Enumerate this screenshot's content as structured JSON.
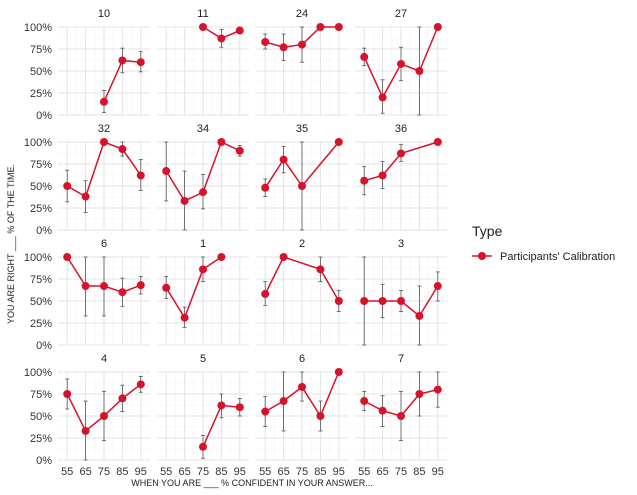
{
  "chart_data": {
    "type": "line",
    "xlabel": "WHEN YOU ARE ___ % CONFIDENT IN YOUR ANSWER...",
    "ylabel": "YOU ARE RIGHT ___ % OF THE TIME.",
    "x_ticks": [
      "55",
      "65",
      "75",
      "85",
      "95"
    ],
    "y_ticks": [
      "0%",
      "25%",
      "50%",
      "75%",
      "100%"
    ],
    "xlim": [
      50,
      100
    ],
    "ylim": [
      0,
      1
    ],
    "grid": true,
    "legend": {
      "title": "Type",
      "placement": "right",
      "entries": [
        {
          "label": "Participants' Calibration",
          "color": "#d7132b"
        }
      ]
    },
    "series_color": "#d7132b",
    "errorbar_color": "#555555",
    "panels": [
      {
        "title": "10",
        "points": [
          {
            "x": 75,
            "y": 0.15,
            "lo": 0.03,
            "hi": 0.28
          },
          {
            "x": 85,
            "y": 0.62,
            "lo": 0.48,
            "hi": 0.76
          },
          {
            "x": 95,
            "y": 0.6,
            "lo": 0.49,
            "hi": 0.72
          }
        ]
      },
      {
        "title": "11",
        "points": [
          {
            "x": 75,
            "y": 1.0,
            "lo": 1.0,
            "hi": 1.0
          },
          {
            "x": 85,
            "y": 0.87,
            "lo": 0.77,
            "hi": 0.97
          },
          {
            "x": 95,
            "y": 0.96,
            "lo": 0.96,
            "hi": 0.96
          }
        ]
      },
      {
        "title": "24",
        "points": [
          {
            "x": 55,
            "y": 0.83,
            "lo": 0.75,
            "hi": 0.92
          },
          {
            "x": 65,
            "y": 0.77,
            "lo": 0.62,
            "hi": 0.92
          },
          {
            "x": 75,
            "y": 0.8,
            "lo": 0.6,
            "hi": 1.0
          },
          {
            "x": 85,
            "y": 1.0,
            "lo": 1.0,
            "hi": 1.0
          },
          {
            "x": 95,
            "y": 1.0,
            "lo": 1.0,
            "hi": 1.0
          }
        ]
      },
      {
        "title": "27",
        "points": [
          {
            "x": 55,
            "y": 0.66,
            "lo": 0.56,
            "hi": 0.76
          },
          {
            "x": 65,
            "y": 0.2,
            "lo": 0.02,
            "hi": 0.4
          },
          {
            "x": 75,
            "y": 0.58,
            "lo": 0.39,
            "hi": 0.77
          },
          {
            "x": 85,
            "y": 0.5,
            "lo": 0.0,
            "hi": 1.0
          },
          {
            "x": 95,
            "y": 1.0,
            "lo": 1.0,
            "hi": 1.0
          }
        ]
      },
      {
        "title": "32",
        "points": [
          {
            "x": 55,
            "y": 0.5,
            "lo": 0.32,
            "hi": 0.68
          },
          {
            "x": 65,
            "y": 0.38,
            "lo": 0.2,
            "hi": 0.56
          },
          {
            "x": 75,
            "y": 1.0,
            "lo": 1.0,
            "hi": 1.0
          },
          {
            "x": 85,
            "y": 0.92,
            "lo": 0.84,
            "hi": 1.0
          },
          {
            "x": 95,
            "y": 0.62,
            "lo": 0.45,
            "hi": 0.8
          }
        ]
      },
      {
        "title": "34",
        "points": [
          {
            "x": 55,
            "y": 0.67,
            "lo": 0.33,
            "hi": 1.0
          },
          {
            "x": 65,
            "y": 0.33,
            "lo": 0.0,
            "hi": 0.67
          },
          {
            "x": 75,
            "y": 0.43,
            "lo": 0.24,
            "hi": 0.63
          },
          {
            "x": 85,
            "y": 1.0,
            "lo": 1.0,
            "hi": 1.0
          },
          {
            "x": 95,
            "y": 0.9,
            "lo": 0.84,
            "hi": 0.96
          }
        ]
      },
      {
        "title": "35",
        "points": [
          {
            "x": 55,
            "y": 0.48,
            "lo": 0.38,
            "hi": 0.58
          },
          {
            "x": 65,
            "y": 0.8,
            "lo": 0.65,
            "hi": 0.95
          },
          {
            "x": 75,
            "y": 0.5,
            "lo": 0.0,
            "hi": 1.0
          },
          {
            "x": 95,
            "y": 1.0,
            "lo": 1.0,
            "hi": 1.0
          }
        ]
      },
      {
        "title": "36",
        "points": [
          {
            "x": 55,
            "y": 0.56,
            "lo": 0.4,
            "hi": 0.72
          },
          {
            "x": 65,
            "y": 0.62,
            "lo": 0.47,
            "hi": 0.78
          },
          {
            "x": 75,
            "y": 0.87,
            "lo": 0.78,
            "hi": 0.97
          },
          {
            "x": 95,
            "y": 1.0,
            "lo": 1.0,
            "hi": 1.0
          }
        ]
      },
      {
        "title": "6",
        "points": [
          {
            "x": 55,
            "y": 1.0,
            "lo": 1.0,
            "hi": 1.0
          },
          {
            "x": 65,
            "y": 0.67,
            "lo": 0.33,
            "hi": 1.0
          },
          {
            "x": 75,
            "y": 0.67,
            "lo": 0.33,
            "hi": 1.0
          },
          {
            "x": 85,
            "y": 0.6,
            "lo": 0.44,
            "hi": 0.76
          },
          {
            "x": 95,
            "y": 0.68,
            "lo": 0.58,
            "hi": 0.78
          }
        ]
      },
      {
        "title": "1",
        "points": [
          {
            "x": 55,
            "y": 0.65,
            "lo": 0.53,
            "hi": 0.78
          },
          {
            "x": 65,
            "y": 0.31,
            "lo": 0.2,
            "hi": 0.43
          },
          {
            "x": 75,
            "y": 0.86,
            "lo": 0.72,
            "hi": 1.0
          },
          {
            "x": 85,
            "y": 1.0,
            "lo": 1.0,
            "hi": 1.0
          }
        ]
      },
      {
        "title": "2",
        "points": [
          {
            "x": 55,
            "y": 0.58,
            "lo": 0.45,
            "hi": 0.72
          },
          {
            "x": 65,
            "y": 1.0,
            "lo": 1.0,
            "hi": 1.0
          },
          {
            "x": 85,
            "y": 0.86,
            "lo": 0.72,
            "hi": 1.0
          },
          {
            "x": 95,
            "y": 0.5,
            "lo": 0.38,
            "hi": 0.62
          }
        ]
      },
      {
        "title": "3",
        "points": [
          {
            "x": 55,
            "y": 0.5,
            "lo": 0.0,
            "hi": 1.0
          },
          {
            "x": 65,
            "y": 0.5,
            "lo": 0.31,
            "hi": 0.69
          },
          {
            "x": 75,
            "y": 0.5,
            "lo": 0.38,
            "hi": 0.62
          },
          {
            "x": 85,
            "y": 0.33,
            "lo": 0.0,
            "hi": 0.67
          },
          {
            "x": 95,
            "y": 0.67,
            "lo": 0.5,
            "hi": 0.83
          }
        ]
      },
      {
        "title": "4",
        "points": [
          {
            "x": 55,
            "y": 0.75,
            "lo": 0.58,
            "hi": 0.92
          },
          {
            "x": 65,
            "y": 0.33,
            "lo": 0.0,
            "hi": 0.67
          },
          {
            "x": 75,
            "y": 0.5,
            "lo": 0.22,
            "hi": 0.78
          },
          {
            "x": 85,
            "y": 0.7,
            "lo": 0.55,
            "hi": 0.85
          },
          {
            "x": 95,
            "y": 0.86,
            "lo": 0.77,
            "hi": 0.95
          }
        ]
      },
      {
        "title": "5",
        "points": [
          {
            "x": 75,
            "y": 0.15,
            "lo": 0.02,
            "hi": 0.28
          },
          {
            "x": 85,
            "y": 0.62,
            "lo": 0.48,
            "hi": 0.75
          },
          {
            "x": 95,
            "y": 0.6,
            "lo": 0.5,
            "hi": 0.7
          }
        ]
      },
      {
        "title": "6",
        "points": [
          {
            "x": 55,
            "y": 0.55,
            "lo": 0.38,
            "hi": 0.72
          },
          {
            "x": 65,
            "y": 0.67,
            "lo": 0.33,
            "hi": 1.0
          },
          {
            "x": 75,
            "y": 0.83,
            "lo": 0.67,
            "hi": 1.0
          },
          {
            "x": 85,
            "y": 0.5,
            "lo": 0.33,
            "hi": 0.67
          },
          {
            "x": 95,
            "y": 1.0,
            "lo": 1.0,
            "hi": 1.0
          }
        ]
      },
      {
        "title": "7",
        "points": [
          {
            "x": 55,
            "y": 0.67,
            "lo": 0.56,
            "hi": 0.78
          },
          {
            "x": 65,
            "y": 0.56,
            "lo": 0.38,
            "hi": 0.73
          },
          {
            "x": 75,
            "y": 0.5,
            "lo": 0.22,
            "hi": 0.78
          },
          {
            "x": 85,
            "y": 0.75,
            "lo": 0.5,
            "hi": 1.0
          },
          {
            "x": 95,
            "y": 0.8,
            "lo": 0.6,
            "hi": 1.0
          }
        ]
      }
    ]
  }
}
